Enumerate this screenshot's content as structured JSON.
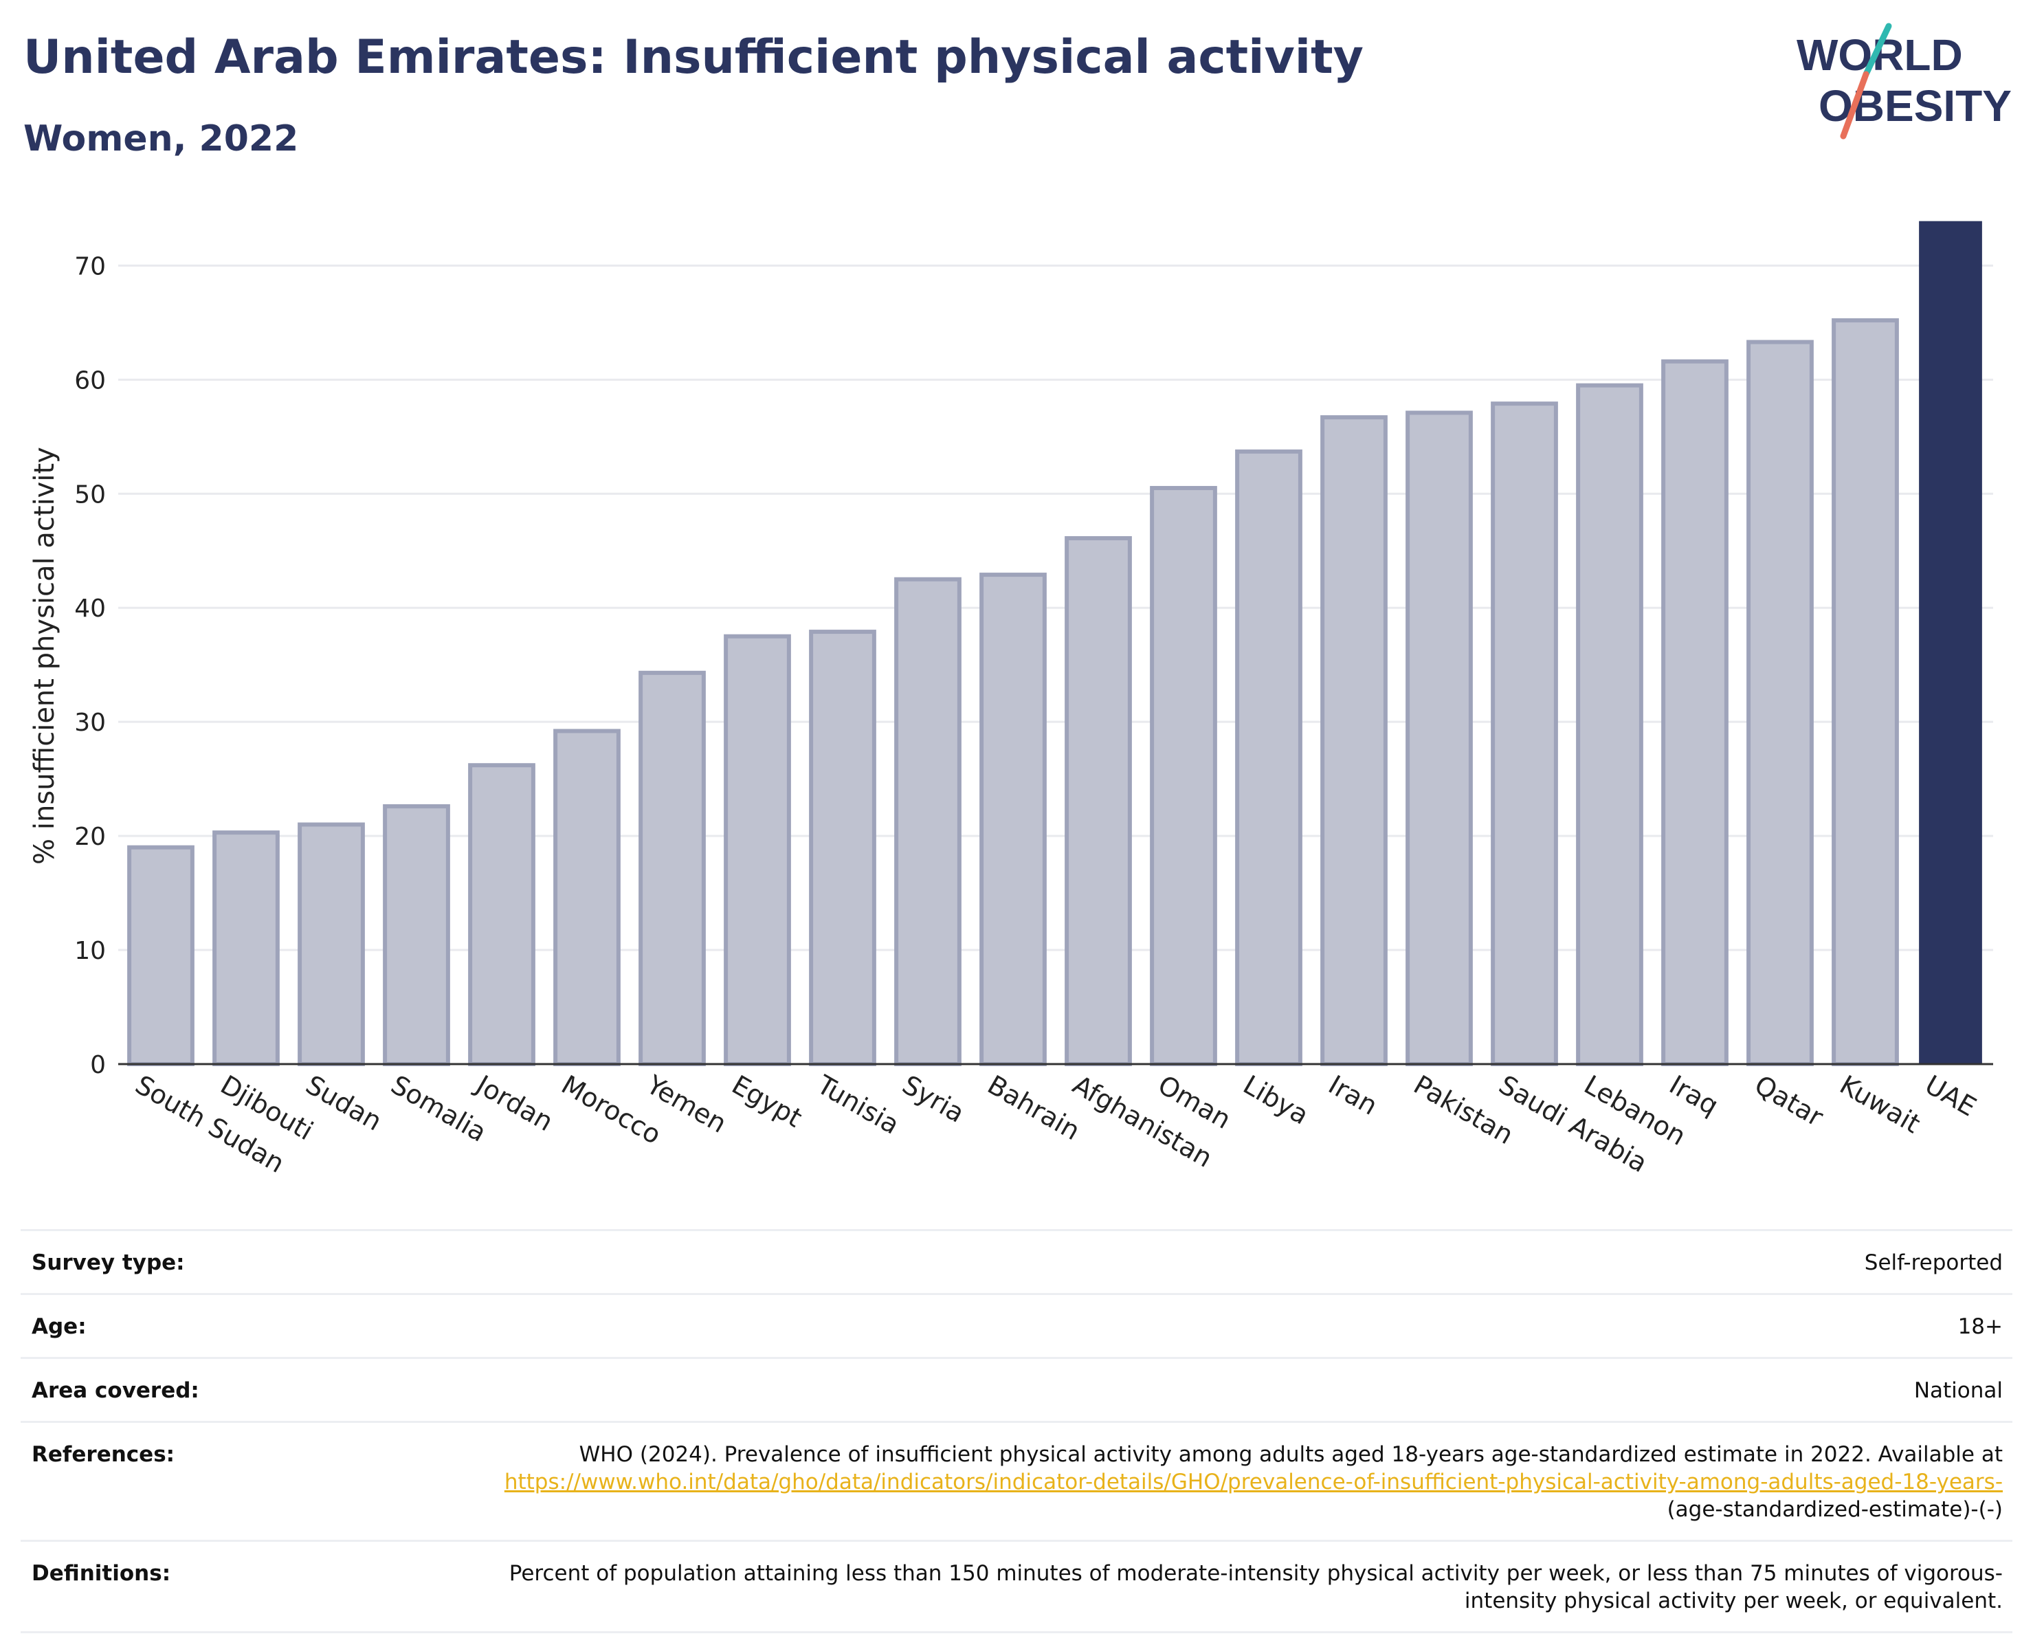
{
  "header": {
    "title": "United Arab Emirates: Insufficient physical activity",
    "subtitle": "Women, 2022"
  },
  "logo": {
    "line1": "WORLD",
    "line2": "OBESITY",
    "colors": {
      "navy": "#2b3560",
      "teal": "#2fb8b0",
      "coral": "#e8705a"
    }
  },
  "chart_data": {
    "type": "bar",
    "ylabel": "% insufficient physical activity",
    "xlabel": "",
    "ylim": [
      0,
      74
    ],
    "yticks": [
      0,
      10,
      20,
      30,
      40,
      50,
      60,
      70
    ],
    "grid": true,
    "categories": [
      "South Sudan",
      "Djibouti",
      "Sudan",
      "Somalia",
      "Jordan",
      "Morocco",
      "Yemen",
      "Egypt",
      "Tunisia",
      "Syria",
      "Bahrain",
      "Afghanistan",
      "Oman",
      "Libya",
      "Iran",
      "Pakistan",
      "Saudi Arabia",
      "Lebanon",
      "Iraq",
      "Qatar",
      "Kuwait",
      "UAE"
    ],
    "values": [
      19.0,
      20.3,
      21.0,
      22.6,
      26.2,
      29.2,
      34.3,
      37.5,
      37.9,
      42.5,
      42.9,
      46.1,
      50.5,
      53.7,
      56.7,
      57.1,
      57.9,
      59.5,
      61.6,
      63.3,
      65.2,
      73.9
    ],
    "highlight": "UAE",
    "colors": {
      "bar": "#bfc2d0",
      "bar_edge": "#9ea3ba",
      "highlight": "#2b3560",
      "axis": "#333333",
      "grid": "#e9eaee"
    }
  },
  "info": {
    "survey_type": {
      "label": "Survey type:",
      "value": "Self-reported"
    },
    "age": {
      "label": "Age:",
      "value": "18+"
    },
    "area": {
      "label": "Area covered:",
      "value": "National"
    },
    "references": {
      "label": "References:",
      "text": "WHO (2024). Prevalence of insufficient physical activity among adults aged 18-years age-standardized estimate in 2022. Available at",
      "link": "https://www.who.int/data/gho/data/indicators/indicator-details/GHO/prevalence-of-insufficient-physical-activity-among-adults-aged-18-years-",
      "tail": "(age-standardized-estimate)-(-)"
    },
    "definitions": {
      "label": "Definitions:",
      "value": "Percent of population attaining less than 150 minutes of moderate-intensity physical activity per week, or less than 75 minutes of vigorous-intensity physical activity per week, or equivalent."
    }
  }
}
